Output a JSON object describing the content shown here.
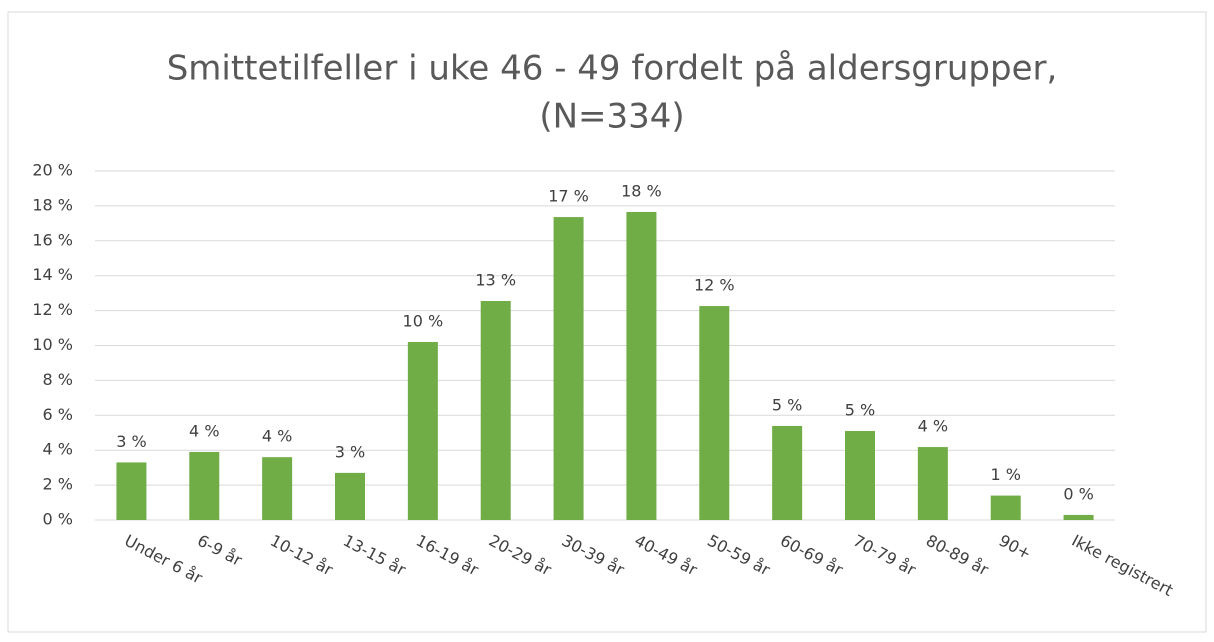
{
  "chart_data": {
    "type": "bar",
    "title": [
      "Smittetilfeller i uke 46 - 49 fordelt på aldersgrupper,",
      "(N=334)"
    ],
    "categories": [
      "Under 6 år",
      "6-9 år",
      "10-12 år",
      "13-15 år",
      "16-19 år",
      "20-29 år",
      "30-39 år",
      "40-49 år",
      "50-59 år",
      "60-69 år",
      "70-79 år",
      "80-89 år",
      "90+",
      "Ikke registrert"
    ],
    "values": [
      3.3,
      3.9,
      3.6,
      2.7,
      10.2,
      12.55,
      17.36,
      17.65,
      12.26,
      5.39,
      5.1,
      4.18,
      1.4,
      0.29
    ],
    "value_labels": [
      "3 %",
      "4 %",
      "4 %",
      "3 %",
      "10 %",
      "13 %",
      "17 %",
      "18 %",
      "12 %",
      "5 %",
      "5 %",
      "4 %",
      "1 %",
      "0 %"
    ],
    "color": "#70ad47",
    "ylim": [
      0,
      20
    ],
    "yticks": [
      {
        "value": 0,
        "label": "0 %"
      },
      {
        "value": 2,
        "label": "2 %"
      },
      {
        "value": 4,
        "label": "4 %"
      },
      {
        "value": 6,
        "label": "6 %"
      },
      {
        "value": 8,
        "label": "8 %"
      },
      {
        "value": 10,
        "label": "10 %"
      },
      {
        "value": 12,
        "label": "12 %"
      },
      {
        "value": 14,
        "label": "14 %"
      },
      {
        "value": 16,
        "label": "16 %"
      },
      {
        "value": 18,
        "label": "18 %"
      },
      {
        "value": 20,
        "label": "20 %"
      }
    ],
    "grid": true
  }
}
